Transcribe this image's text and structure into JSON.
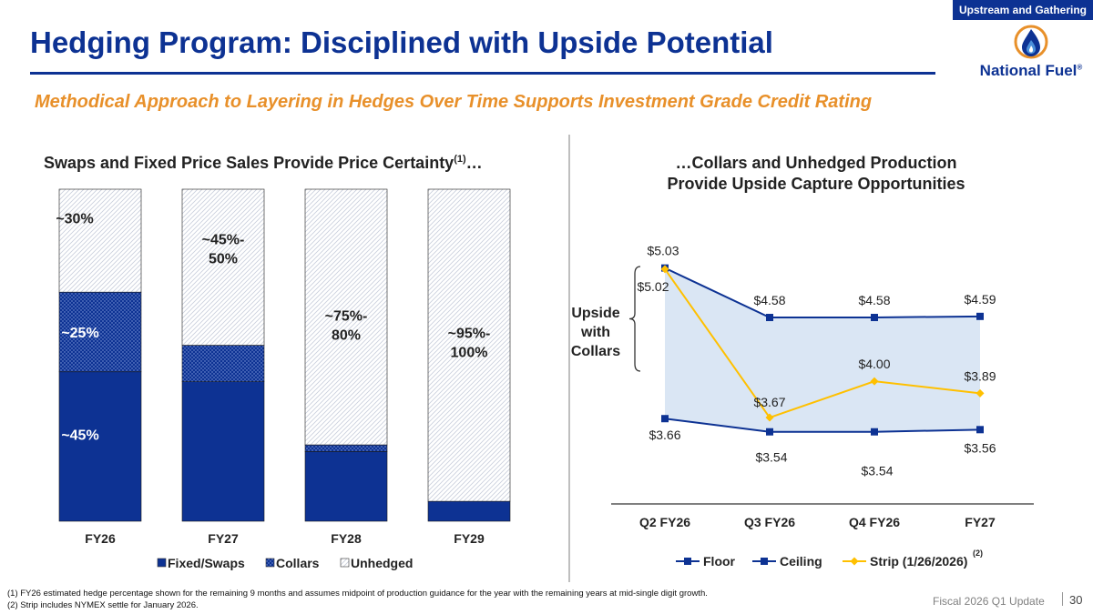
{
  "header": {
    "tag": "Upstream and Gathering",
    "title": "Hedging Program: Disciplined with Upside Potential",
    "subtitle": "Methodical Approach to Layering in Hedges Over Time Supports Investment Grade Credit Rating",
    "logo_text": "National Fuel",
    "logo_trademark": "®"
  },
  "left_chart_title": "Swaps and Fixed Price Sales Provide Price Certainty",
  "left_chart_title_sup": "(1)",
  "left_chart_title_suffix": "…",
  "right_chart_title_line1": "…Collars and Unhedged Production",
  "right_chart_title_line2": "Provide Upside Capture Opportunities",
  "upside_label": [
    "Upside",
    "with",
    "Collars"
  ],
  "colors": {
    "brand": "#0d3293",
    "accent": "#e8902a",
    "strip": "#ffc000",
    "band": "#dae6f4"
  },
  "chart_data": [
    {
      "type": "bar",
      "stacked": true,
      "categories": [
        "FY26",
        "FY27",
        "FY28",
        "FY29"
      ],
      "series": [
        {
          "name": "Fixed/Swaps",
          "values": [
            45,
            42,
            21,
            6
          ],
          "color": "#0d3293"
        },
        {
          "name": "Collars",
          "values": [
            24,
            11,
            2,
            0
          ],
          "color": "#0d3293",
          "pattern": "dots"
        },
        {
          "name": "Unhedged",
          "values": [
            31,
            47,
            77,
            94
          ],
          "color": "#ffffff",
          "pattern": "diagonal"
        }
      ],
      "ylim": [
        0,
        100
      ],
      "annotations": [
        {
          "category": "FY26",
          "series": "Unhedged",
          "lines": [
            "~30%"
          ],
          "color": "#222222"
        },
        {
          "category": "FY26",
          "series": "Collars",
          "lines": [
            "~25%"
          ],
          "color": "#ffffff"
        },
        {
          "category": "FY26",
          "series": "Fixed/Swaps",
          "lines": [
            "~45%"
          ],
          "color": "#ffffff"
        },
        {
          "category": "FY27",
          "series": "Unhedged",
          "lines": [
            "~45%-",
            "50%"
          ],
          "color": "#222222"
        },
        {
          "category": "FY28",
          "series": "Unhedged",
          "lines": [
            "~75%-",
            "80%"
          ],
          "color": "#222222"
        },
        {
          "category": "FY29",
          "series": "Unhedged",
          "lines": [
            "~95%-",
            "100%"
          ],
          "color": "#222222"
        }
      ],
      "legend_position": "bottom"
    },
    {
      "type": "line",
      "categories": [
        "Q2 FY26",
        "Q3 FY26",
        "Q4 FY26",
        "FY27"
      ],
      "series": [
        {
          "name": "Floor",
          "values": [
            3.66,
            3.54,
            3.54,
            3.56
          ],
          "labels": [
            "$3.66",
            "$3.54",
            "$3.54",
            "$3.56"
          ],
          "color": "#0d3293",
          "marker": "square"
        },
        {
          "name": "Ceiling",
          "values": [
            5.03,
            4.58,
            4.58,
            4.59
          ],
          "labels": [
            "$5.03",
            "$4.58",
            "$4.58",
            "$4.59"
          ],
          "color": "#0d3293",
          "marker": "square"
        },
        {
          "name": "Strip (1/26/2026)",
          "values": [
            5.02,
            3.67,
            4.0,
            3.89
          ],
          "labels": [
            "$5.02",
            "$3.67",
            "$4.00",
            "$3.89"
          ],
          "color": "#ffc000",
          "marker": "diamond",
          "legend_sup": "(2)"
        }
      ],
      "fill_between": [
        "Floor",
        "Ceiling"
      ],
      "ylim": [
        3.0,
        5.3
      ],
      "legend_position": "bottom"
    }
  ],
  "footnotes": [
    "(1) FY26 estimated hedge percentage shown for the remaining 9 months and assumes midpoint of production guidance for the year with the remaining years at mid-single digit growth.",
    "(2) Strip includes NYMEX settle for January 2026."
  ],
  "footer": {
    "label": "Fiscal 2026 Q1 Update",
    "page": "30"
  }
}
